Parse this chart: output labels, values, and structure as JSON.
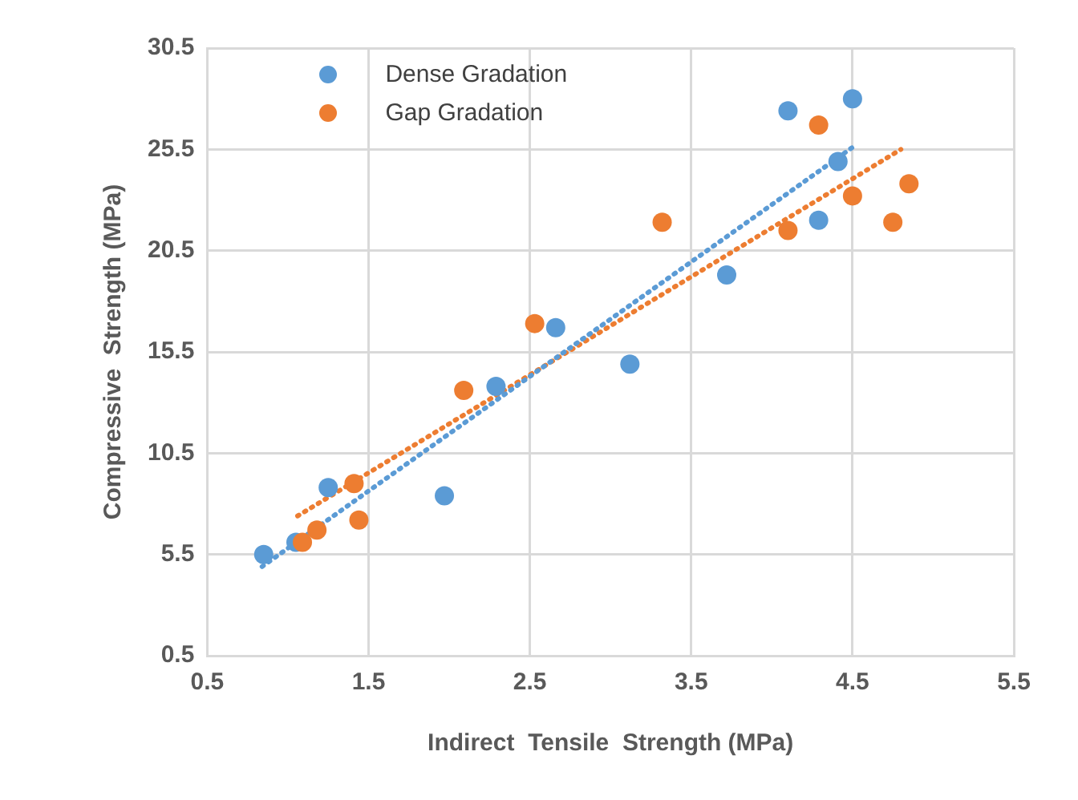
{
  "chart_data": {
    "type": "scatter",
    "xlabel": "Indirect  Tensile  Strength (MPa)",
    "ylabel": "Compressive  Strength (MPa)",
    "xlim": [
      0.5,
      5.5
    ],
    "xticks": [
      {
        "value": 0.5,
        "label": "0.5"
      },
      {
        "value": 1.5,
        "label": "1.5"
      },
      {
        "value": 2.5,
        "label": "2.5"
      },
      {
        "value": 3.5,
        "label": "3.5"
      },
      {
        "value": 4.5,
        "label": "4.5"
      },
      {
        "value": 5.5,
        "label": "5.5"
      }
    ],
    "ylim": [
      0.5,
      30.5
    ],
    "yticks": [
      {
        "value": 0.5,
        "label": "0.5"
      },
      {
        "value": 5.5,
        "label": "5.5"
      },
      {
        "value": 10.5,
        "label": "10.5"
      },
      {
        "value": 15.5,
        "label": "15.5"
      },
      {
        "value": 20.5,
        "label": "20.5"
      },
      {
        "value": 25.5,
        "label": "25.5"
      },
      {
        "value": 30.5,
        "label": "30.5"
      }
    ],
    "grid": true,
    "legend": "top left",
    "marker": "circle",
    "series": [
      {
        "name": "Dense Gradation",
        "color": "#5b9bd5",
        "x": [
          0.85,
          1.05,
          1.25,
          1.97,
          2.29,
          2.66,
          3.12,
          3.72,
          4.1,
          4.41,
          4.29,
          4.5
        ],
        "values": [
          5.5,
          6.1,
          8.8,
          8.4,
          13.8,
          16.7,
          14.9,
          19.3,
          27.4,
          24.9,
          22.0,
          28.0
        ]
      },
      {
        "name": "Gap Gradation",
        "color": "#ed7d31",
        "x": [
          1.09,
          1.18,
          1.41,
          1.44,
          2.09,
          2.53,
          3.32,
          4.1,
          4.29,
          4.5,
          4.75,
          4.85
        ],
        "values": [
          6.1,
          6.7,
          9.0,
          7.2,
          13.6,
          16.9,
          21.9,
          21.5,
          26.7,
          23.2,
          21.9,
          23.8
        ]
      },
      {
        "type": "line",
        "line_style": "dotted",
        "marker": "none",
        "color": "#5b9bd5",
        "x": [
          0.84,
          4.5
        ],
        "values": [
          4.9,
          25.6
        ]
      },
      {
        "type": "line",
        "line_style": "dotted",
        "marker": "none",
        "color": "#ed7d31",
        "x": [
          1.06,
          4.8
        ],
        "values": [
          7.4,
          25.5
        ]
      }
    ]
  }
}
